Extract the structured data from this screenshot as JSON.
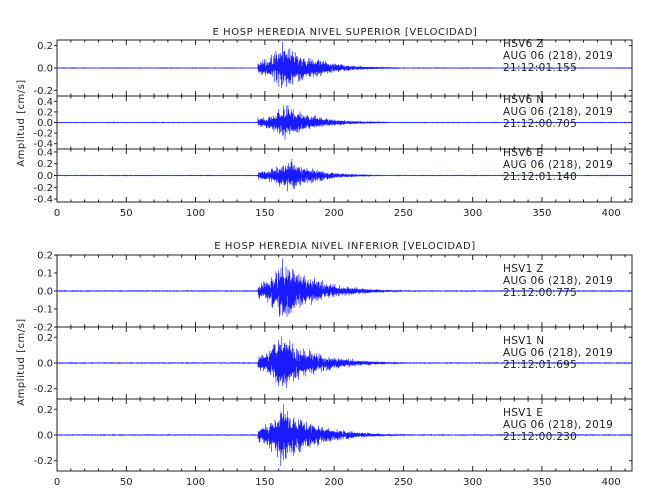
{
  "chart_data": [
    {
      "type": "line",
      "title": "E HOSP HEREDIA NIVEL SUPERIOR [VELOCIDAD]",
      "xlabel": "",
      "ylabel": "Amplitud [cm/s]",
      "xlim": [
        0,
        415
      ],
      "x_ticks": [
        "0",
        "50",
        "100",
        "150",
        "200",
        "250",
        "300",
        "350",
        "400"
      ],
      "tick_values": [
        0,
        50,
        100,
        150,
        200,
        250,
        300,
        350,
        400
      ],
      "series": [
        {
          "name": "HSV6   Z",
          "date": "AUG 06 (218), 2019",
          "time": "21:12:01.155",
          "ylim": [
            -0.25,
            0.25
          ],
          "y_ticks": [
            "0.2",
            "0.0",
            "-0.2"
          ],
          "y_tick_values": [
            0.2,
            0.0,
            -0.2
          ],
          "envelope": {
            "onset": 145,
            "peak_at": 162,
            "peak_amp": 0.24,
            "decay_end": 240
          }
        },
        {
          "name": "HSV6   N",
          "date": "AUG 06 (218), 2019",
          "time": "21:12:00.705",
          "ylim": [
            -0.5,
            0.5
          ],
          "y_ticks": [
            "0.4",
            "0.2",
            "0.0",
            "-0.2",
            "-0.4"
          ],
          "y_tick_values": [
            0.4,
            0.2,
            0.0,
            -0.2,
            -0.4
          ],
          "envelope": {
            "onset": 145,
            "peak_at": 165,
            "peak_amp": 0.35,
            "decay_end": 235
          }
        },
        {
          "name": "HSV6   E",
          "date": "AUG 06 (218), 2019",
          "time": "21:12:01.140",
          "ylim": [
            -0.45,
            0.45
          ],
          "y_ticks": [
            "0.4",
            "0.2",
            "0.0",
            "-0.2",
            "-0.4"
          ],
          "y_tick_values": [
            0.4,
            0.2,
            0.0,
            -0.2,
            -0.4
          ],
          "envelope": {
            "onset": 145,
            "peak_at": 168,
            "peak_amp": 0.32,
            "decay_end": 230
          }
        }
      ]
    },
    {
      "type": "line",
      "title": "E HOSP HEREDIA NIVEL INFERIOR [VELOCIDAD]",
      "xlabel": "",
      "ylabel": "Amplitud [cm/s]",
      "xlim": [
        0,
        415
      ],
      "x_ticks": [
        "0",
        "50",
        "100",
        "150",
        "200",
        "250",
        "300",
        "350",
        "400"
      ],
      "tick_values": [
        0,
        50,
        100,
        150,
        200,
        250,
        300,
        350,
        400
      ],
      "series": [
        {
          "name": "HSV1   Z",
          "date": "AUG 06 (218), 2019",
          "time": "21:12:00.775",
          "ylim": [
            -0.2,
            0.2
          ],
          "y_ticks": [
            "0.2",
            "0.1",
            "0.0",
            "-0.1",
            "-0.2"
          ],
          "y_tick_values": [
            0.2,
            0.1,
            0.0,
            -0.1,
            -0.2
          ],
          "envelope": {
            "onset": 145,
            "peak_at": 162,
            "peak_amp": 0.19,
            "decay_end": 245
          }
        },
        {
          "name": "HSV1   N",
          "date": "AUG 06 (218), 2019",
          "time": "21:12:01.695",
          "ylim": [
            -0.28,
            0.28
          ],
          "y_ticks": [
            "0.2",
            "0.0",
            "-0.2"
          ],
          "y_tick_values": [
            0.2,
            0.0,
            -0.2
          ],
          "envelope": {
            "onset": 145,
            "peak_at": 161,
            "peak_amp": 0.25,
            "decay_end": 245
          }
        },
        {
          "name": "HSV1   E",
          "date": "AUG 06 (218), 2019",
          "time": "21:12:00.230",
          "ylim": [
            -0.28,
            0.28
          ],
          "y_ticks": [
            "0.2",
            "0.0",
            "-0.2"
          ],
          "y_tick_values": [
            0.2,
            0.0,
            -0.2
          ],
          "envelope": {
            "onset": 145,
            "peak_at": 162,
            "peak_amp": 0.25,
            "decay_end": 245
          }
        }
      ]
    }
  ]
}
